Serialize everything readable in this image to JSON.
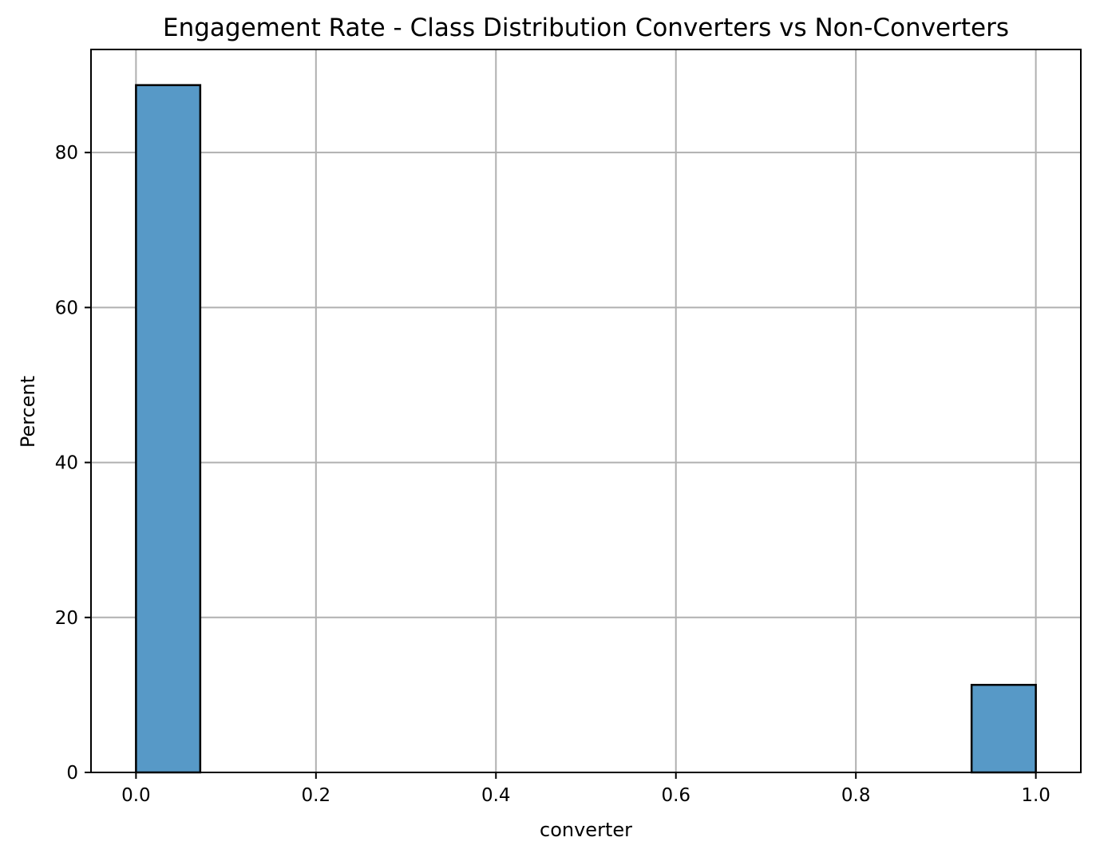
{
  "chart_data": {
    "type": "bar",
    "subtype": "histogram",
    "title": "Engagement Rate - Class Distribution Converters vs Non-Converters",
    "xlabel": "converter",
    "ylabel": "Percent",
    "xlim": [
      -0.05,
      1.05
    ],
    "ylim": [
      0,
      93.3
    ],
    "x_ticks": [
      0.0,
      0.2,
      0.4,
      0.6,
      0.8,
      1.0
    ],
    "x_tick_labels": [
      "0.0",
      "0.2",
      "0.4",
      "0.6",
      "0.8",
      "1.0"
    ],
    "y_ticks": [
      0,
      20,
      40,
      60,
      80
    ],
    "y_tick_labels": [
      "0",
      "20",
      "40",
      "60",
      "80"
    ],
    "grid": true,
    "bar_color": "#5799c7",
    "edge_color": "#000000",
    "grid_color": "#b0b0b0",
    "bins": [
      {
        "x_start": 0.0,
        "x_end": 0.0714,
        "value": 88.7
      },
      {
        "x_start": 0.9286,
        "x_end": 1.0,
        "value": 11.3
      }
    ]
  }
}
